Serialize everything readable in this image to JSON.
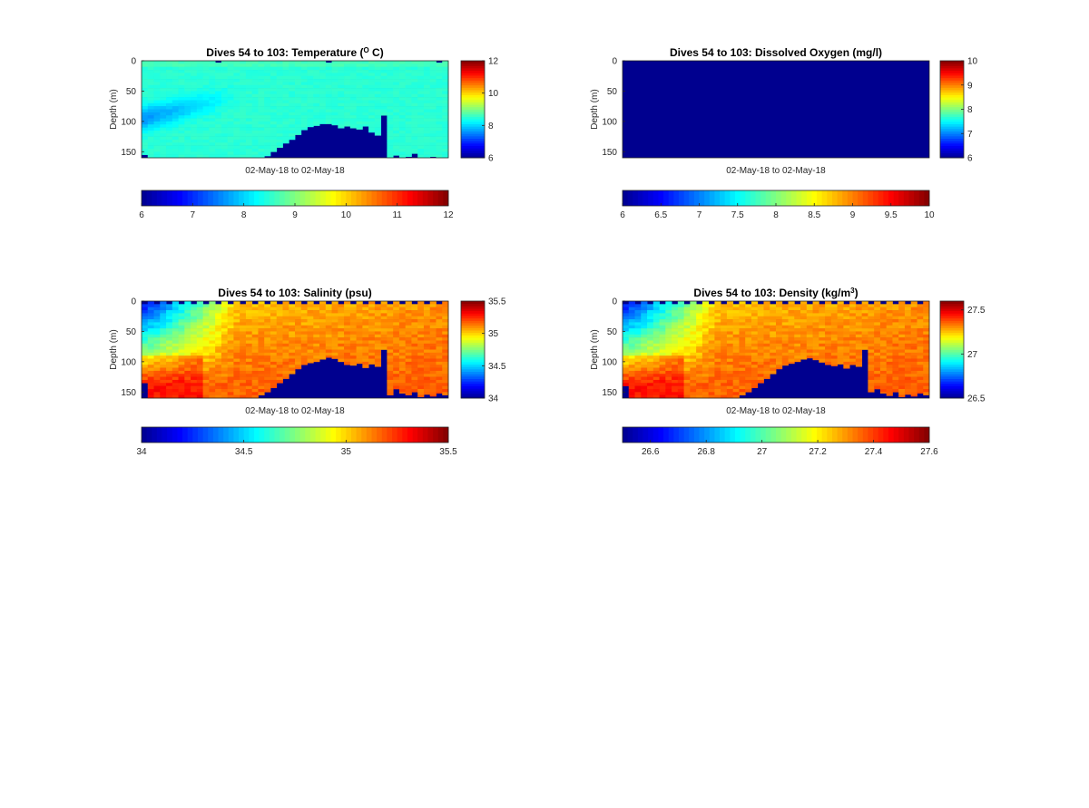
{
  "colors": {
    "jet": [
      "#00008f",
      "#0000ff",
      "#0080ff",
      "#00ffff",
      "#80ff80",
      "#ffff00",
      "#ff8000",
      "#ff0000",
      "#800000"
    ],
    "no_data": "#00008f",
    "axis": "#262626"
  },
  "chart_data": [
    {
      "type": "heatmap",
      "title_main": "Dives 54 to 103: Temperature (",
      "title_sup": "O",
      "title_tail": " C)",
      "xlabel": "02-May-18 to 02-May-18",
      "ylabel": "Depth (m)",
      "ylim": [
        0,
        160
      ],
      "yticks": [
        0,
        50,
        100,
        150
      ],
      "clim": [
        6,
        12
      ],
      "side_colorbar_ticks": [
        6,
        8,
        10,
        12
      ],
      "bottom_colorbar_ticks": [
        6,
        7,
        8,
        9,
        10,
        11,
        12
      ],
      "n_dives": 50,
      "profile_kind": "temperature",
      "seabed_depth": [
        155,
        160,
        160,
        160,
        160,
        160,
        160,
        160,
        160,
        160,
        160,
        160,
        160,
        160,
        160,
        160,
        160,
        160,
        160,
        160,
        157,
        150,
        143,
        136,
        130,
        122,
        114,
        109,
        107,
        104,
        104,
        106,
        111,
        108,
        111,
        113,
        108,
        118,
        123,
        90,
        160,
        156,
        160,
        158,
        153,
        160,
        160,
        158,
        160,
        160
      ]
    },
    {
      "type": "heatmap",
      "title_main": "Dives 54 to 103: Dissolved Oxygen (mg/l)",
      "title_sup": "",
      "title_tail": "",
      "xlabel": "02-May-18 to 02-May-18",
      "ylabel": "Depth (m)",
      "ylim": [
        0,
        160
      ],
      "yticks": [
        0,
        50,
        100,
        150
      ],
      "clim": [
        6,
        10
      ],
      "side_colorbar_ticks": [
        6,
        7,
        8,
        9,
        10
      ],
      "bottom_colorbar_ticks": [
        6,
        6.5,
        7,
        7.5,
        8,
        8.5,
        9,
        9.5,
        10
      ],
      "n_dives": 50,
      "profile_kind": "none",
      "seabed_depth": []
    },
    {
      "type": "heatmap",
      "title_main": "Dives 54 to 103: Salinity (psu)",
      "title_sup": "",
      "title_tail": "",
      "xlabel": "02-May-18 to 02-May-18",
      "ylabel": "Depth (m)",
      "ylim": [
        0,
        160
      ],
      "yticks": [
        0,
        50,
        100,
        150
      ],
      "clim": [
        34,
        35.5
      ],
      "side_colorbar_ticks": [
        34,
        34.5,
        35,
        35.5
      ],
      "bottom_colorbar_ticks": [
        34,
        34.5,
        35,
        35.5
      ],
      "n_dives": 50,
      "profile_kind": "salinity",
      "seabed_depth": [
        135,
        160,
        160,
        160,
        160,
        160,
        160,
        160,
        160,
        160,
        160,
        160,
        160,
        160,
        160,
        160,
        160,
        160,
        160,
        155,
        150,
        143,
        135,
        128,
        120,
        112,
        105,
        102,
        100,
        96,
        93,
        95,
        100,
        105,
        106,
        103,
        110,
        104,
        108,
        80,
        155,
        145,
        152,
        155,
        150,
        158,
        154,
        157,
        152,
        155
      ]
    },
    {
      "type": "heatmap",
      "title_main": "Dives 54 to 103: Density (kg/m",
      "title_sup": "3",
      "title_tail": ")",
      "xlabel": "02-May-18 to 02-May-18",
      "ylabel": "Depth (m)",
      "ylim": [
        0,
        160
      ],
      "yticks": [
        0,
        50,
        100,
        150
      ],
      "clim": [
        26.5,
        27.6
      ],
      "side_colorbar_ticks": [
        26.5,
        27,
        27.5
      ],
      "bottom_colorbar_ticks": [
        26.6,
        26.8,
        27,
        27.2,
        27.4,
        27.6
      ],
      "n_dives": 50,
      "profile_kind": "density",
      "seabed_depth": [
        140,
        160,
        160,
        160,
        160,
        160,
        160,
        160,
        160,
        160,
        160,
        160,
        160,
        160,
        160,
        160,
        160,
        160,
        160,
        155,
        150,
        143,
        135,
        128,
        120,
        112,
        106,
        103,
        100,
        96,
        94,
        97,
        101,
        105,
        107,
        104,
        111,
        105,
        108,
        80,
        150,
        145,
        152,
        156,
        150,
        158,
        154,
        157,
        152,
        155
      ]
    }
  ]
}
